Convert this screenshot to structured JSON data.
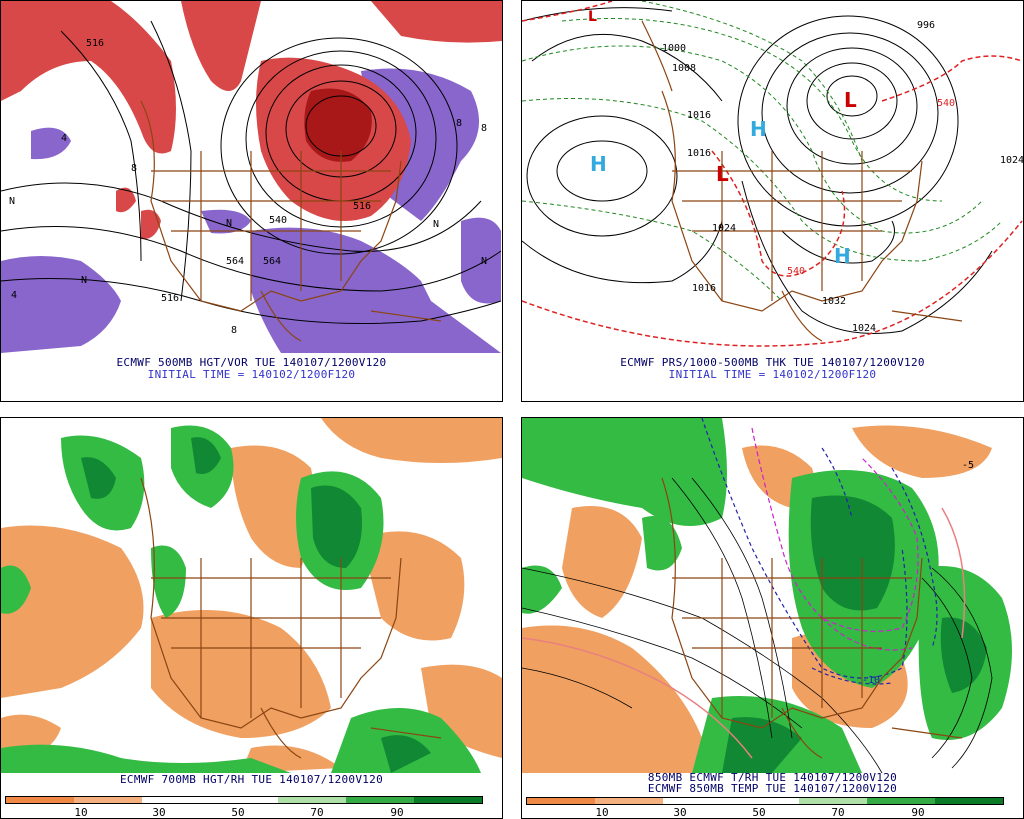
{
  "panels": {
    "top_left": {
      "title": "ECMWF 500MB HGT/VOR TUE 140107/1200V120",
      "subtitle": "INITIAL TIME = 140102/1200F120",
      "labels": [
        "516",
        "8",
        "4",
        "N",
        "4",
        "564",
        "516",
        "8",
        "8",
        "N",
        "N",
        "540",
        "564",
        "516",
        "8",
        "N",
        "N"
      ],
      "colors": {
        "vort": "#d94848",
        "vort_dark": "#a81818",
        "neg": "#8866cc",
        "text": "#000066",
        "subtitle": "#3333cc"
      }
    },
    "top_right": {
      "title": "ECMWF PRS/1000-500MB THK TUE 140107/1200V120",
      "subtitle": "INITIAL TIME = 140102/1200F120",
      "labels": [
        "1000",
        "1008",
        "1016",
        "1016",
        "1024",
        "1024",
        "1032",
        "1024",
        "1016",
        "996",
        "540",
        "540"
      ],
      "highs": [
        "H",
        "H",
        "H"
      ],
      "lows": [
        "L",
        "L",
        "L"
      ],
      "colors": {
        "high": "#33aadd",
        "low": "#cc0000",
        "thick_warm": "#dd2222",
        "thick_cold": "#228822"
      }
    },
    "bottom_left": {
      "title": "ECMWF 700MB HGT/RH TUE 140107/1200V120",
      "legend_ticks": [
        "10",
        "30",
        "50",
        "70",
        "90"
      ],
      "colors": {
        "dry": "#f0a060",
        "moist": "#33bb44",
        "very_moist": "#118833"
      }
    },
    "bottom_right": {
      "title": "850MB ECMWF T/RH TUE 140107/1200V120",
      "subtitle": "ECMWF 850MB TEMP TUE 140107/1200V120",
      "legend_ticks": [
        "10",
        "30",
        "50",
        "70",
        "90"
      ],
      "labels": [
        "-10",
        "-5"
      ],
      "colors": {
        "dry": "#f0a060",
        "moist": "#33bb44",
        "very_moist": "#118833",
        "cold_iso": "#2222aa",
        "zero_iso": "#cc22cc"
      }
    }
  },
  "legend_colors": [
    "#ee8844",
    "#f5b080",
    "#ffffff",
    "#ffffff",
    "#aee0a8",
    "#33aa44",
    "#0a7a26"
  ]
}
